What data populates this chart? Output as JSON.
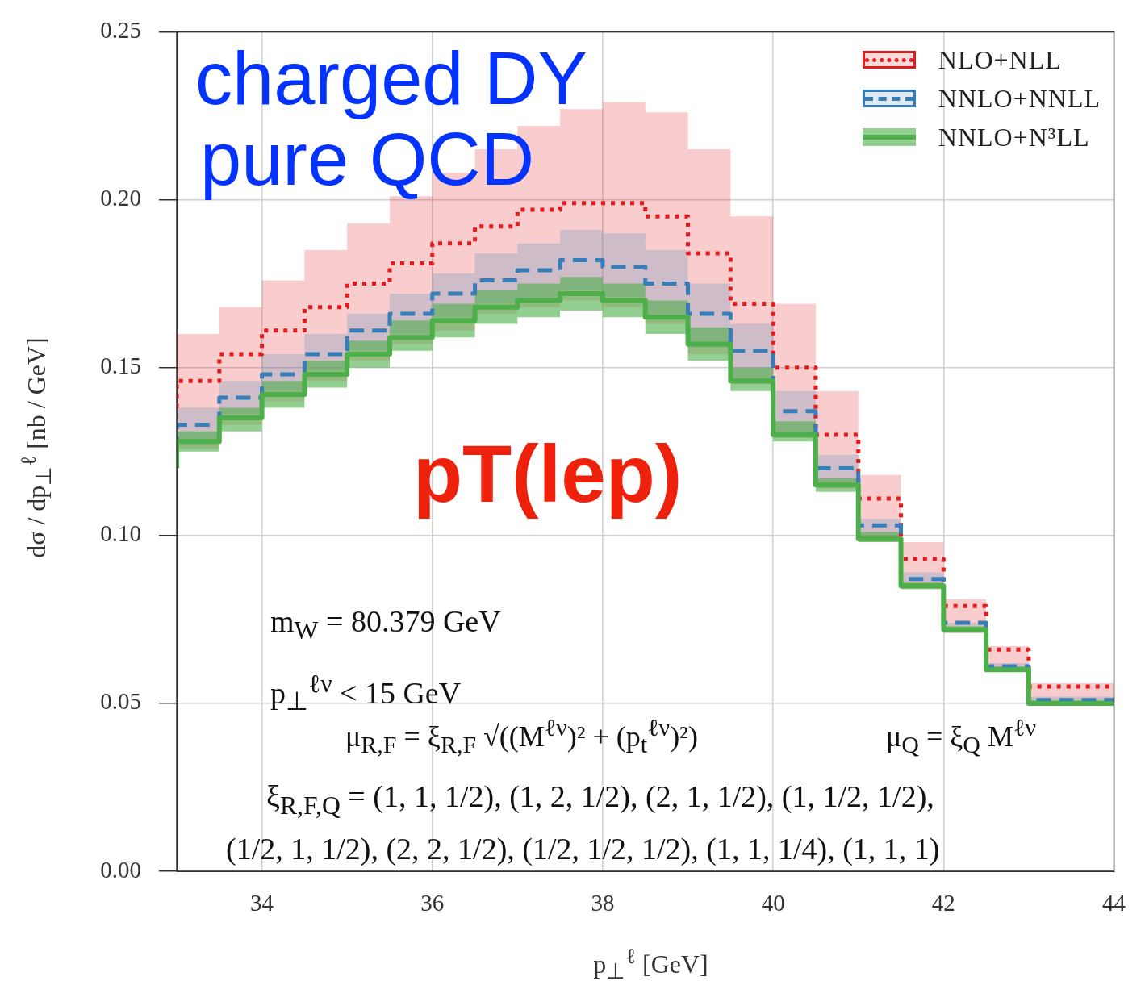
{
  "chart_data": {
    "type": "step",
    "xlabel": "p$_{⊥}$$^{ℓ}$  [GeV]",
    "ylabel": "dσ / dp$_{⊥}$$^{ℓ}$  [nb / GeV]",
    "x": [
      33,
      33.5,
      34,
      34.5,
      35,
      35.5,
      36,
      36.5,
      37,
      37.5,
      38,
      38.5,
      39,
      39.5,
      40,
      40.5,
      41,
      41.5,
      42,
      42.5,
      43,
      43.5,
      44
    ],
    "series": [
      {
        "name": "NLO+NLL",
        "color": "#e41a1c",
        "line_style": "dotted",
        "values": [
          0.138,
          0.146,
          0.154,
          0.161,
          0.168,
          0.175,
          0.181,
          0.187,
          0.192,
          0.197,
          0.199,
          0.199,
          0.195,
          0.184,
          0.169,
          0.15,
          0.13,
          0.111,
          0.093,
          0.079,
          0.066,
          0.055,
          0.055
        ],
        "upper": [
          0.152,
          0.16,
          0.168,
          0.176,
          0.185,
          0.193,
          0.201,
          0.208,
          0.215,
          0.222,
          0.227,
          0.229,
          0.226,
          0.215,
          0.195,
          0.169,
          0.143,
          0.118,
          0.098,
          0.081,
          0.067,
          0.056,
          0.056
        ],
        "lower": [
          0.119,
          0.126,
          0.133,
          0.14,
          0.146,
          0.152,
          0.157,
          0.161,
          0.166,
          0.168,
          0.17,
          0.168,
          0.163,
          0.154,
          0.145,
          0.129,
          0.114,
          0.098,
          0.084,
          0.071,
          0.06,
          0.05,
          0.05
        ]
      },
      {
        "name": "NNLO+NNLL",
        "color": "#377eb8",
        "line_style": "dashed",
        "values": [
          0.125,
          0.133,
          0.141,
          0.148,
          0.154,
          0.161,
          0.166,
          0.172,
          0.176,
          0.179,
          0.182,
          0.18,
          0.175,
          0.166,
          0.155,
          0.137,
          0.12,
          0.103,
          0.087,
          0.074,
          0.061,
          0.051,
          0.051
        ],
        "upper": [
          0.13,
          0.138,
          0.146,
          0.154,
          0.16,
          0.166,
          0.172,
          0.178,
          0.184,
          0.187,
          0.191,
          0.19,
          0.185,
          0.175,
          0.163,
          0.143,
          0.124,
          0.105,
          0.089,
          0.074,
          0.062,
          0.052,
          0.052
        ],
        "lower": [
          0.121,
          0.128,
          0.136,
          0.143,
          0.149,
          0.155,
          0.16,
          0.165,
          0.169,
          0.17,
          0.173,
          0.171,
          0.165,
          0.156,
          0.146,
          0.13,
          0.116,
          0.1,
          0.086,
          0.073,
          0.06,
          0.051,
          0.051
        ]
      },
      {
        "name": "NNLO+N³LL",
        "color": "#4daf4a",
        "line_style": "solid",
        "values": [
          0.12,
          0.128,
          0.135,
          0.142,
          0.148,
          0.154,
          0.159,
          0.164,
          0.168,
          0.17,
          0.172,
          0.17,
          0.165,
          0.157,
          0.146,
          0.13,
          0.115,
          0.099,
          0.085,
          0.072,
          0.06,
          0.05,
          0.05
        ],
        "upper": [
          0.122,
          0.131,
          0.138,
          0.146,
          0.152,
          0.158,
          0.164,
          0.169,
          0.173,
          0.175,
          0.177,
          0.175,
          0.17,
          0.162,
          0.15,
          0.134,
          0.117,
          0.101,
          0.086,
          0.073,
          0.061,
          0.051,
          0.051
        ],
        "lower": [
          0.116,
          0.125,
          0.131,
          0.138,
          0.144,
          0.15,
          0.155,
          0.159,
          0.163,
          0.165,
          0.167,
          0.165,
          0.16,
          0.152,
          0.143,
          0.128,
          0.113,
          0.098,
          0.084,
          0.071,
          0.06,
          0.05,
          0.05
        ]
      }
    ],
    "xlim": [
      33,
      44
    ],
    "xticks": [
      34,
      36,
      38,
      40,
      42,
      44
    ],
    "ylim": [
      0,
      0.25
    ],
    "yticks": [
      {
        "value": 0,
        "label": "0.00"
      },
      {
        "value": 0.05,
        "label": "0.05"
      },
      {
        "value": 0.1,
        "label": "0.10"
      },
      {
        "value": 0.15,
        "label": "0.15"
      },
      {
        "value": 0.2,
        "label": "0.20"
      },
      {
        "value": 0.25,
        "label": "0.25"
      }
    ],
    "grid": true,
    "legend": "top right",
    "marker": "none",
    "annotations": [
      "charged DY",
      "pure QCD",
      "pT(lep)",
      "m$_{W}$ = 80.379 GeV",
      "p$_{⊥}$$^{ℓν}$ < 15 GeV",
      "μ$_{R,F}$ = ξ$_{R,F}$ √((M$^{ℓν}$)² + (p$_{t}$$^{ℓν}$)²)",
      "μ$_{Q}$ = ξ$_{Q}$ M$^{ℓν}$",
      "ξ$_{R,F,Q}$ = (1, 1, 1/2), (1, 2, 1/2), (2, 1, 1/2), (1, 1/2, 1/2),",
      "(1/2, 1, 1/2), (2, 2, 1/2), (1/2, 1/2, 1/2), (1, 1, 1/4), (1, 1, 1)"
    ]
  }
}
